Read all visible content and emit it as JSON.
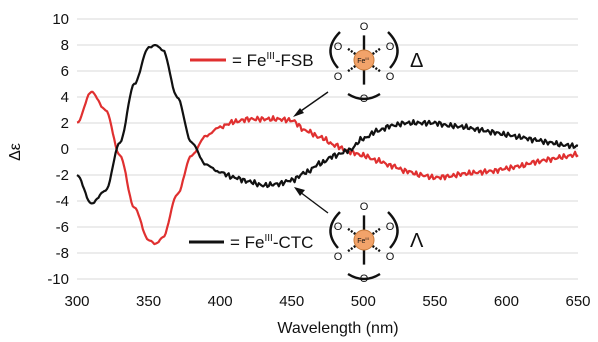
{
  "chart_data": {
    "type": "line",
    "title": "",
    "xlabel": "Wavelength (nm)",
    "ylabel": "Δε",
    "xlim": [
      300,
      650
    ],
    "ylim": [
      -10,
      10
    ],
    "x_ticks": [
      "300",
      "350",
      "400",
      "450",
      "500",
      "550",
      "600",
      "650"
    ],
    "y_ticks": [
      "10",
      "8",
      "6",
      "4",
      "2",
      "0",
      "-2",
      "-4",
      "-6",
      "-8",
      "-10"
    ],
    "grid": "horizontal",
    "x": [
      300,
      310,
      320,
      330,
      340,
      350,
      355,
      360,
      370,
      380,
      390,
      400,
      410,
      420,
      430,
      440,
      450,
      460,
      470,
      480,
      490,
      500,
      510,
      520,
      530,
      540,
      550,
      560,
      570,
      580,
      590,
      600,
      610,
      620,
      630,
      640,
      650
    ],
    "series": [
      {
        "legend_prefix": "= Fe",
        "legend_sup": "III",
        "legend_suffix": "-FSB",
        "color": "#e03030",
        "values": [
          2.0,
          4.4,
          3.0,
          -0.5,
          -4.5,
          -7.0,
          -7.3,
          -6.8,
          -3.5,
          -0.5,
          1.0,
          1.7,
          2.1,
          2.3,
          2.3,
          2.3,
          2.2,
          1.4,
          0.9,
          0.3,
          -0.2,
          -0.5,
          -0.9,
          -1.3,
          -1.7,
          -2.0,
          -2.2,
          -2.1,
          -1.9,
          -1.8,
          -1.7,
          -1.5,
          -1.3,
          -1.0,
          -0.8,
          -0.6,
          -0.4
        ]
      },
      {
        "legend_prefix": "= Fe",
        "legend_sup": "III",
        "legend_suffix": "-CTC",
        "color": "#111111",
        "values": [
          -2.0,
          -4.2,
          -3.2,
          0.5,
          5.0,
          7.8,
          8.0,
          7.6,
          4.0,
          0.5,
          -1.2,
          -1.8,
          -2.2,
          -2.5,
          -2.8,
          -2.7,
          -2.4,
          -1.8,
          -1.1,
          -0.5,
          -0.1,
          0.8,
          1.4,
          1.8,
          2.0,
          2.0,
          2.0,
          1.8,
          1.7,
          1.5,
          1.3,
          1.1,
          0.9,
          0.7,
          0.5,
          0.3,
          0.2
        ]
      }
    ],
    "annotations": [
      {
        "label": "Δ",
        "complex_center_label": "Fe",
        "center_sup": "III",
        "atom_label": "O"
      },
      {
        "label": "Λ",
        "complex_center_label": "Fe",
        "center_sup": "III",
        "atom_label": "O"
      }
    ]
  }
}
